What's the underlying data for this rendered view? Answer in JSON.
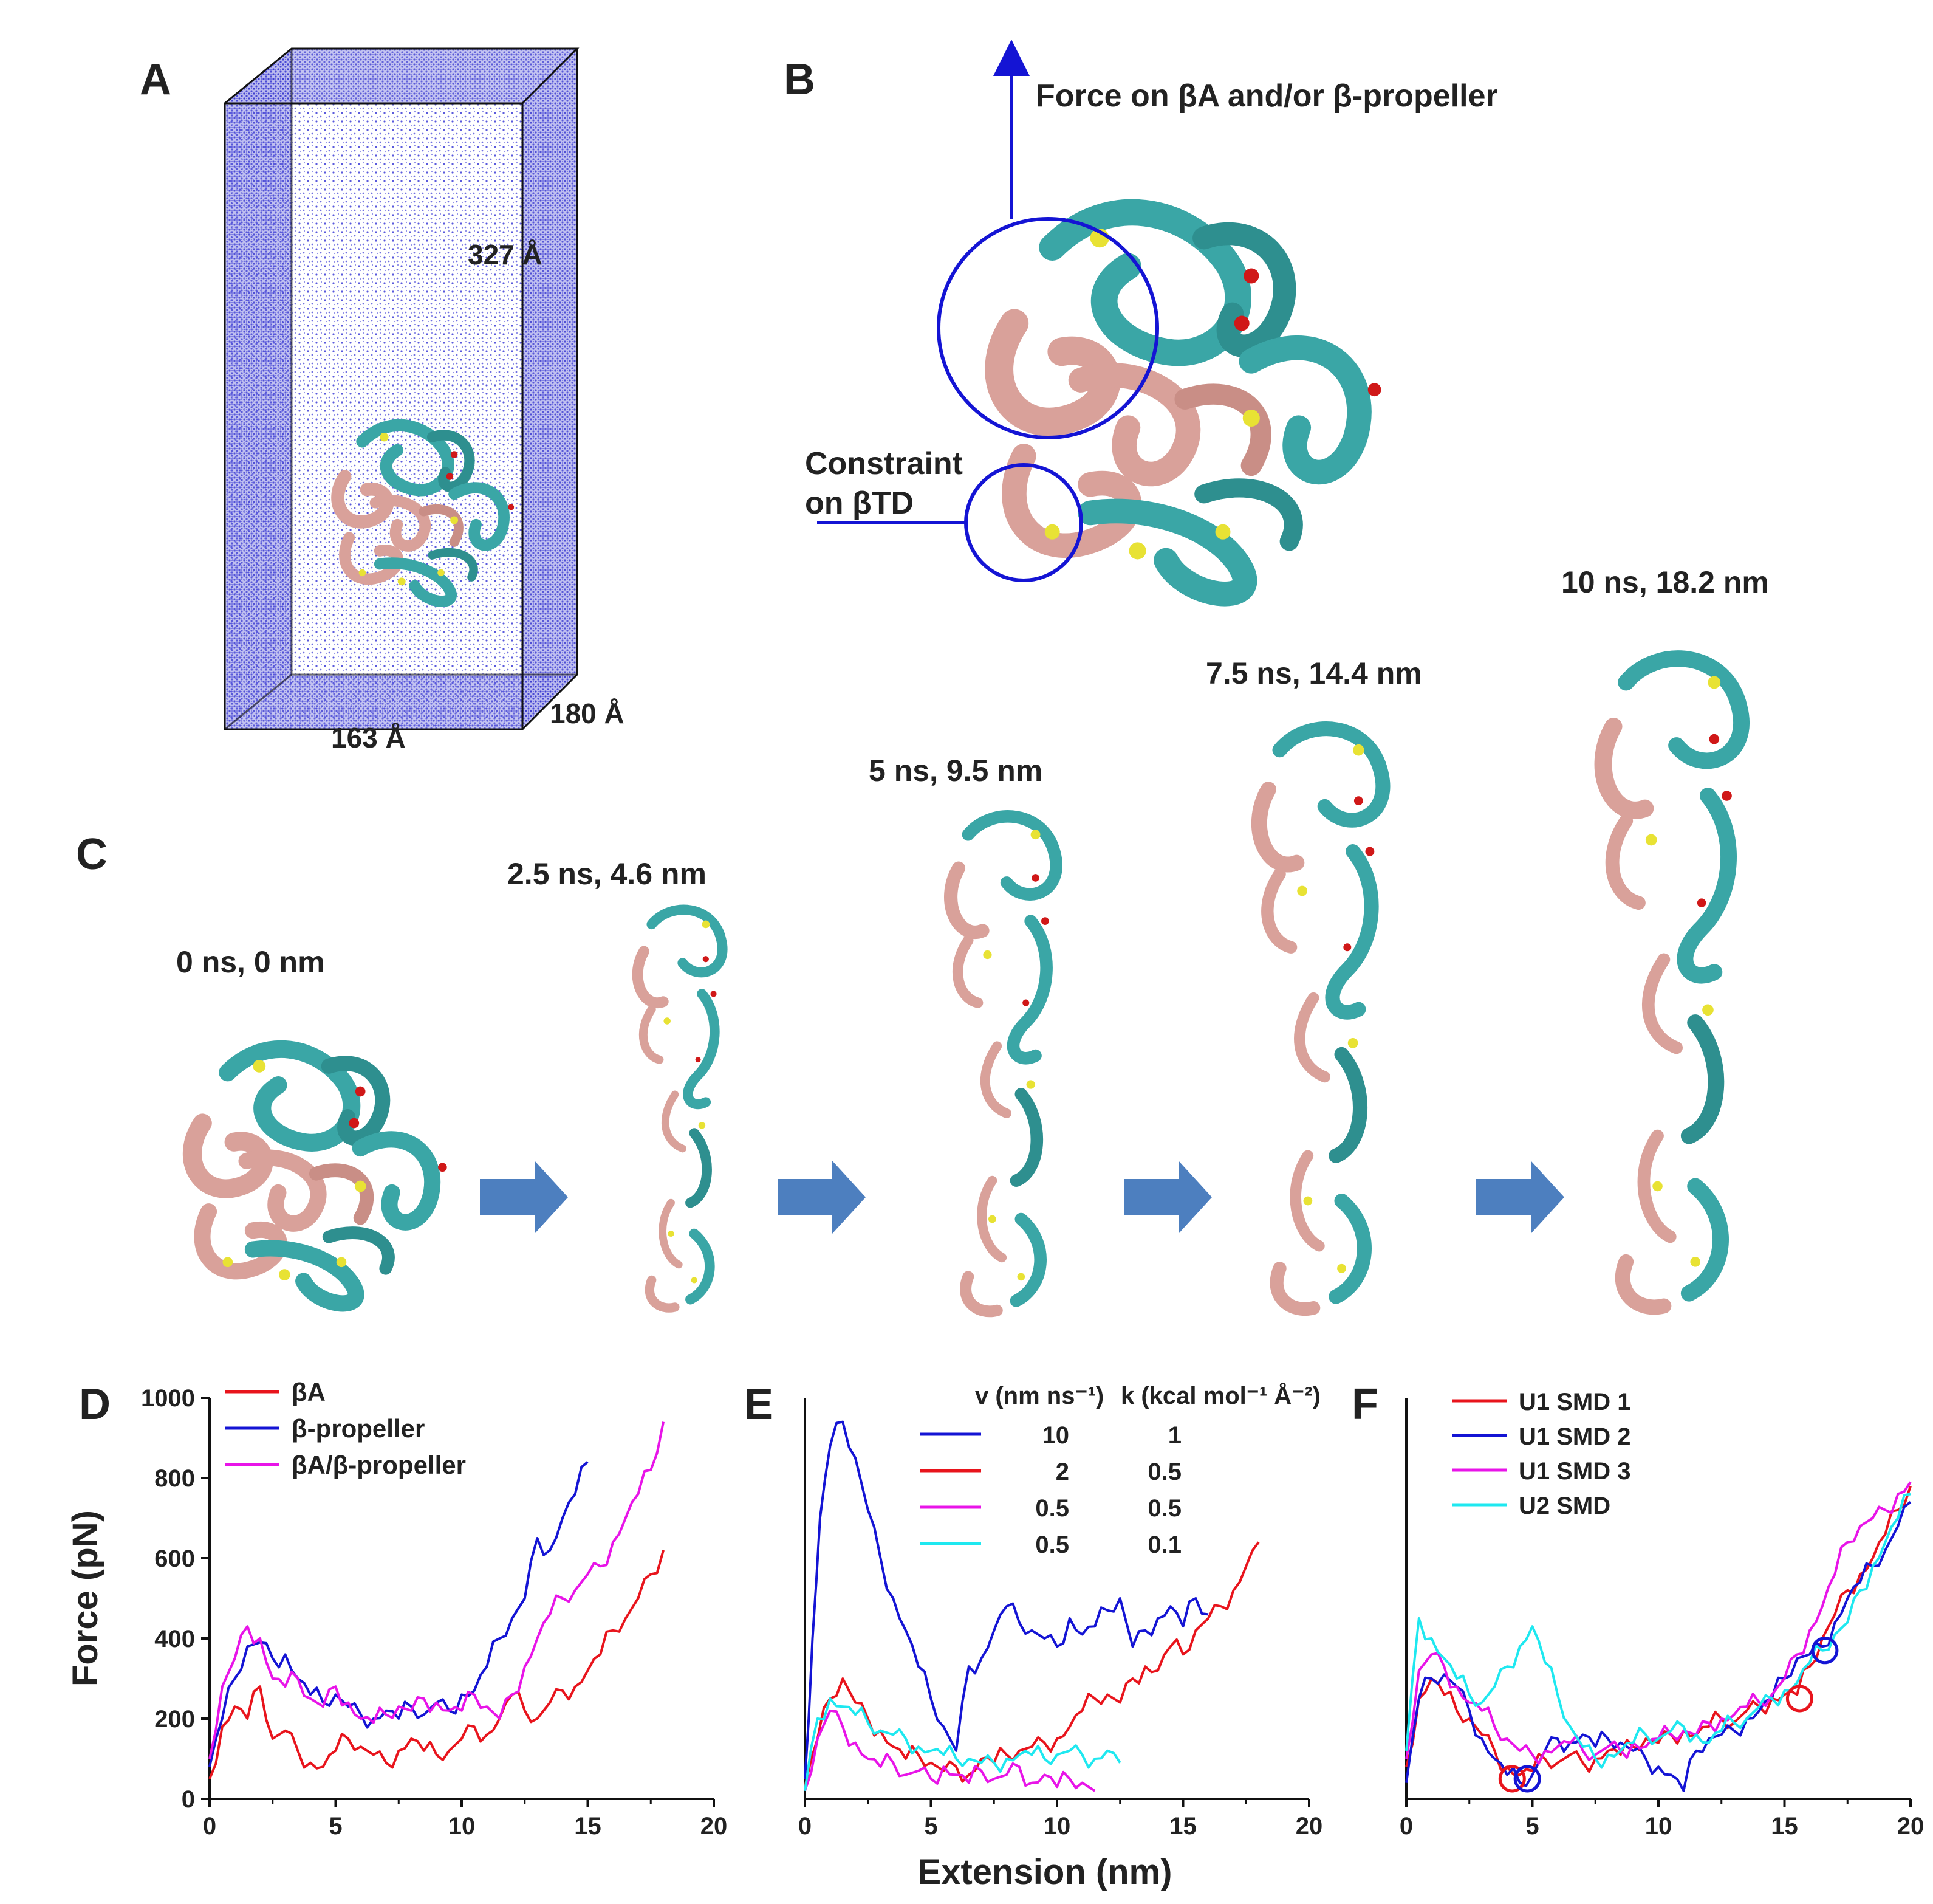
{
  "panels": {
    "A": "A",
    "B": "B",
    "C": "C",
    "D": "D",
    "E": "E",
    "F": "F"
  },
  "panelA": {
    "height_label": "327 Å",
    "width_label": "163 Å",
    "depth_label": "180 Å"
  },
  "panelB": {
    "force_label": "Force on βA and/or β-propeller",
    "constraint_line1": "Constraint",
    "constraint_line2": "on βTD"
  },
  "panelC": {
    "snapshots": [
      "0 ns, 0 nm",
      "2.5 ns, 4.6 nm",
      "5 ns, 9.5 nm",
      "7.5 ns, 14.4 nm",
      "10 ns, 18.2 nm"
    ]
  },
  "colors": {
    "red": "#e8141c",
    "blue": "#1414d4",
    "magenta": "#e814e8",
    "cyan": "#1ee8f0",
    "cyan_protein": "#3aa6a6",
    "pink_protein": "#d9a19a",
    "arrow": "#4d7fbf",
    "water": "#5a5adc"
  },
  "chart_data": [
    {
      "panel": "D",
      "type": "line",
      "xlabel": "Extension (nm)",
      "ylabel": "Force (pN)",
      "xlim": [
        0,
        20
      ],
      "ylim": [
        0,
        1000
      ],
      "xticks": [
        "0",
        "5",
        "10",
        "15",
        "20"
      ],
      "yticks": [
        "0",
        "200",
        "400",
        "600",
        "800",
        "1000"
      ],
      "legend": [
        "βA",
        "β-propeller",
        "βA/β-propeller"
      ],
      "series": [
        {
          "name": "βA",
          "color": "#e8141c",
          "x": [
            0,
            0.5,
            1,
            1.5,
            2,
            2.5,
            3,
            3.5,
            4,
            4.5,
            5,
            5.5,
            6,
            6.5,
            7,
            7.5,
            8,
            8.5,
            9,
            9.5,
            10,
            10.5,
            11,
            11.5,
            12,
            12.5,
            13,
            13.5,
            14,
            14.5,
            15,
            15.5,
            16,
            16.5,
            17,
            17.5,
            18
          ],
          "y": [
            50,
            180,
            230,
            200,
            280,
            150,
            170,
            120,
            90,
            80,
            120,
            150,
            130,
            110,
            90,
            120,
            150,
            120,
            110,
            120,
            150,
            180,
            160,
            200,
            260,
            220,
            200,
            240,
            270,
            280,
            320,
            360,
            420,
            450,
            500,
            560,
            620
          ]
        },
        {
          "name": "β-propeller",
          "color": "#1414d4",
          "x": [
            0,
            0.5,
            1,
            1.5,
            2,
            2.5,
            3,
            3.5,
            4,
            4.5,
            5,
            5.5,
            6,
            6.5,
            7,
            7.5,
            8,
            8.5,
            9,
            9.5,
            10,
            10.5,
            11,
            11.5,
            12,
            12.5,
            13,
            13.5,
            14,
            14.5,
            15
          ],
          "y": [
            80,
            200,
            300,
            380,
            390,
            350,
            360,
            300,
            260,
            240,
            260,
            230,
            210,
            200,
            220,
            200,
            230,
            210,
            240,
            220,
            260,
            270,
            330,
            400,
            450,
            500,
            650,
            620,
            700,
            760,
            840
          ]
        },
        {
          "name": "βA/β-propeller",
          "color": "#e814e8",
          "x": [
            0,
            0.5,
            1,
            1.5,
            2,
            2.5,
            3,
            3.5,
            4,
            4.5,
            5,
            5.5,
            6,
            6.5,
            7,
            7.5,
            8,
            8.5,
            9,
            9.5,
            10,
            10.5,
            11,
            11.5,
            12,
            12.5,
            13,
            13.5,
            14,
            14.5,
            15,
            15.5,
            16,
            16.5,
            17,
            17.5,
            18
          ],
          "y": [
            100,
            280,
            350,
            430,
            400,
            300,
            280,
            300,
            250,
            230,
            280,
            240,
            200,
            190,
            210,
            230,
            220,
            250,
            240,
            220,
            220,
            260,
            230,
            200,
            260,
            330,
            400,
            460,
            500,
            520,
            560,
            580,
            640,
            700,
            760,
            820,
            940
          ]
        }
      ]
    },
    {
      "panel": "E",
      "type": "line",
      "xlabel": "Extension (nm)",
      "ylabel": "",
      "xlim": [
        0,
        20
      ],
      "ylim": [
        0,
        1000
      ],
      "xticks": [
        "0",
        "5",
        "10",
        "15",
        "20"
      ],
      "yticks": [],
      "legend_header": {
        "v": "v (nm ns⁻¹)",
        "k": "k (kcal mol⁻¹ Å⁻²)"
      },
      "legend_rows": [
        {
          "v": "10",
          "k": "1",
          "color": "#1414d4"
        },
        {
          "v": "2",
          "k": "0.5",
          "color": "#e8141c"
        },
        {
          "v": "0.5",
          "k": "0.5",
          "color": "#e814e8"
        },
        {
          "v": "0.5",
          "k": "0.1",
          "color": "#1ee8f0"
        }
      ],
      "series": [
        {
          "name": "v=10,k=1",
          "color": "#1414d4",
          "x": [
            0,
            0.3,
            0.6,
            1,
            1.5,
            2,
            2.5,
            3,
            3.5,
            4,
            4.5,
            5,
            5.5,
            6,
            6.5,
            7,
            7.5,
            8,
            8.5,
            9,
            9.5,
            10,
            10.5,
            11,
            11.5,
            12,
            12.5,
            13,
            13.5,
            14,
            14.5,
            15,
            15.5,
            16
          ],
          "y": [
            50,
            400,
            700,
            880,
            940,
            850,
            720,
            600,
            500,
            420,
            330,
            250,
            180,
            120,
            330,
            350,
            420,
            480,
            440,
            420,
            400,
            380,
            450,
            410,
            430,
            470,
            500,
            380,
            420,
            450,
            480,
            430,
            500,
            460
          ]
        },
        {
          "name": "v=2,k=0.5",
          "color": "#e8141c",
          "x": [
            0,
            0.5,
            1,
            1.5,
            2,
            2.5,
            3,
            3.5,
            4,
            4.5,
            5,
            5.5,
            6,
            6.5,
            7,
            7.5,
            8,
            8.5,
            9,
            9.5,
            10,
            10.5,
            11,
            11.5,
            12,
            12.5,
            13,
            13.5,
            14,
            14.5,
            15,
            15.5,
            16,
            16.5,
            17,
            17.5,
            18
          ],
          "y": [
            30,
            150,
            250,
            300,
            240,
            200,
            170,
            130,
            100,
            110,
            90,
            70,
            80,
            60,
            100,
            90,
            110,
            120,
            130,
            140,
            150,
            180,
            220,
            250,
            260,
            240,
            300,
            330,
            320,
            380,
            360,
            420,
            450,
            480,
            520,
            580,
            640
          ]
        },
        {
          "name": "v=0.5,k=0.5",
          "color": "#e814e8",
          "x": [
            0,
            0.5,
            1,
            1.5,
            2,
            2.5,
            3,
            3.5,
            4,
            4.5,
            5,
            5.5,
            6,
            6.5,
            7,
            7.5,
            8,
            8.5,
            9,
            9.5,
            10,
            10.5,
            11,
            11.5
          ],
          "y": [
            20,
            150,
            220,
            180,
            140,
            100,
            80,
            90,
            60,
            70,
            50,
            80,
            60,
            40,
            70,
            50,
            60,
            80,
            40,
            60,
            30,
            50,
            40,
            20
          ]
        },
        {
          "name": "v=0.5,k=0.1",
          "color": "#1ee8f0",
          "x": [
            0,
            0.5,
            1,
            1.5,
            2,
            2.5,
            3,
            3.5,
            4,
            4.5,
            5,
            5.5,
            6,
            6.5,
            7,
            7.5,
            8,
            8.5,
            9,
            9.5,
            10,
            10.5,
            11,
            11.5,
            12,
            12.5
          ],
          "y": [
            20,
            200,
            250,
            230,
            210,
            190,
            170,
            160,
            150,
            130,
            120,
            110,
            100,
            100,
            90,
            90,
            100,
            110,
            110,
            100,
            110,
            120,
            110,
            100,
            120,
            90
          ]
        }
      ]
    },
    {
      "panel": "F",
      "type": "line",
      "xlabel": "Extension (nm)",
      "ylabel": "",
      "xlim": [
        0,
        20
      ],
      "ylim": [
        0,
        1000
      ],
      "xticks": [
        "0",
        "5",
        "10",
        "15",
        "20"
      ],
      "yticks": [],
      "legend": [
        "U1 SMD 1",
        "U1 SMD 2",
        "U1 SMD 3",
        "U2 SMD"
      ],
      "markers": [
        {
          "x": 4.2,
          "y": 50,
          "color": "#e8141c"
        },
        {
          "x": 4.8,
          "y": 50,
          "color": "#1414d4"
        },
        {
          "x": 15.6,
          "y": 250,
          "color": "#e8141c"
        },
        {
          "x": 16.6,
          "y": 370,
          "color": "#1414d4"
        }
      ],
      "series": [
        {
          "name": "U1 SMD 1",
          "color": "#e8141c",
          "x": [
            0,
            0.5,
            1,
            1.5,
            2,
            2.5,
            3,
            3.5,
            4,
            4.5,
            5,
            5.5,
            6,
            6.5,
            7,
            7.5,
            8,
            8.5,
            9,
            9.5,
            10,
            10.5,
            11,
            11.5,
            12,
            12.5,
            13,
            13.5,
            14,
            14.5,
            15,
            15.5,
            16,
            16.5,
            17,
            17.5,
            18,
            18.5,
            19,
            19.5,
            20
          ],
          "y": [
            80,
            250,
            300,
            260,
            220,
            200,
            160,
            120,
            80,
            60,
            70,
            100,
            90,
            110,
            90,
            100,
            120,
            110,
            130,
            150,
            140,
            160,
            170,
            160,
            180,
            200,
            190,
            220,
            230,
            250,
            260,
            260,
            330,
            400,
            460,
            520,
            560,
            600,
            660,
            720,
            780
          ]
        },
        {
          "name": "U1 SMD 2",
          "color": "#1414d4",
          "x": [
            0,
            0.5,
            1,
            1.5,
            2,
            2.5,
            3,
            3.5,
            4,
            4.5,
            5,
            5.5,
            6,
            6.5,
            7,
            7.5,
            8,
            8.5,
            9,
            9.5,
            10,
            10.5,
            11,
            11.5,
            12,
            12.5,
            13,
            13.5,
            14,
            14.5,
            15,
            15.5,
            16,
            16.5,
            17,
            17.5,
            18,
            18.5,
            19,
            19.5,
            20
          ],
          "y": [
            40,
            250,
            300,
            310,
            280,
            220,
            150,
            100,
            60,
            40,
            60,
            120,
            150,
            140,
            160,
            130,
            150,
            140,
            120,
            100,
            80,
            60,
            20,
            120,
            150,
            160,
            170,
            200,
            220,
            250,
            300,
            350,
            360,
            380,
            440,
            500,
            540,
            580,
            620,
            680,
            740
          ]
        },
        {
          "name": "U1 SMD 3",
          "color": "#e814e8",
          "x": [
            0,
            0.5,
            1,
            1.5,
            2,
            2.5,
            3,
            3.5,
            4,
            4.5,
            5,
            5.5,
            6,
            6.5,
            7,
            7.5,
            8,
            8.5,
            9,
            9.5,
            10,
            10.5,
            11,
            11.5,
            12,
            12.5,
            13,
            13.5,
            14,
            14.5,
            15,
            15.5,
            16,
            16.5,
            17,
            17.5,
            18,
            18.5,
            19,
            19.5,
            20
          ],
          "y": [
            100,
            320,
            360,
            330,
            280,
            240,
            220,
            180,
            150,
            120,
            110,
            120,
            130,
            140,
            120,
            110,
            130,
            120,
            140,
            130,
            150,
            160,
            170,
            160,
            190,
            200,
            210,
            230,
            240,
            260,
            300,
            360,
            420,
            480,
            560,
            640,
            680,
            700,
            720,
            760,
            790
          ]
        },
        {
          "name": "U2 SMD",
          "color": "#1ee8f0",
          "x": [
            0,
            0.5,
            1,
            1.5,
            2,
            2.5,
            3,
            3.5,
            4,
            4.5,
            5,
            5.5,
            6,
            6.5,
            7,
            7.5,
            8,
            8.5,
            9,
            9.5,
            10,
            10.5,
            11,
            11.5,
            12,
            12.5,
            13,
            13.5,
            14,
            14.5,
            15,
            15.5,
            16,
            16.5,
            17,
            17.5,
            18,
            18.5,
            19,
            19.5,
            20
          ],
          "y": [
            120,
            450,
            400,
            350,
            300,
            260,
            240,
            280,
            330,
            380,
            430,
            340,
            260,
            180,
            130,
            100,
            110,
            120,
            140,
            160,
            150,
            170,
            180,
            160,
            140,
            170,
            190,
            200,
            230,
            250,
            270,
            290,
            340,
            370,
            410,
            440,
            520,
            580,
            640,
            700,
            760
          ]
        }
      ]
    }
  ]
}
